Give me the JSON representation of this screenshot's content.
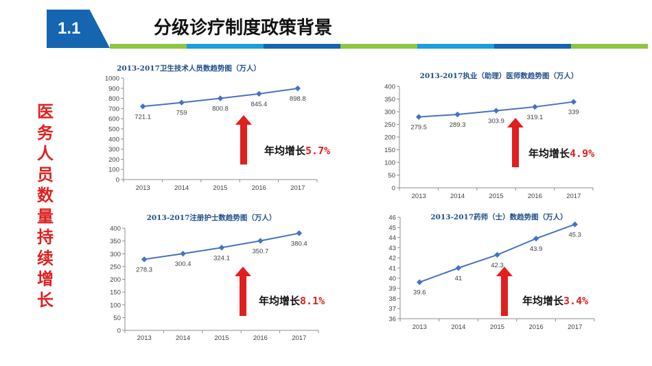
{
  "header": {
    "section_number": "1.1",
    "title": "分级诊疗制度政策背景",
    "stripe_colors": [
      "#8dc63f",
      "#1a9fde",
      "#1565b0",
      "#8dc63f",
      "#1a9fde",
      "#1565b0",
      "#8dc63f"
    ]
  },
  "side_title": [
    "医",
    "务",
    "人",
    "员",
    "数",
    "量",
    "持",
    "续",
    "增",
    "长"
  ],
  "colors": {
    "accent": "#e0201f",
    "brand": "#1565b0",
    "series": "#4472c4"
  },
  "annotations": [
    {
      "prefix": "年均增长",
      "value": "5.7%"
    },
    {
      "prefix": "年均增长",
      "value": "4.9%"
    },
    {
      "prefix": "年均增长",
      "value": "8.1%"
    },
    {
      "prefix": "年均增长",
      "value": "3.4%"
    }
  ],
  "chart_data": [
    {
      "type": "line",
      "title": "2013-2017卫生技术人员数趋势图（万人）",
      "categories": [
        "2013",
        "2014",
        "2015",
        "2016",
        "2017"
      ],
      "values": [
        721.1,
        759,
        800.8,
        845.4,
        898.8
      ],
      "value_labels": [
        "721.1",
        "759",
        "800.8",
        "845.4",
        "898.8"
      ],
      "ylim": [
        0,
        1000
      ],
      "yticks": [
        "0",
        "100",
        "200",
        "300",
        "400",
        "500",
        "600",
        "700",
        "800",
        "900",
        "1000"
      ]
    },
    {
      "type": "line",
      "title": "2013-2017执业（助理）医师数趋势图（万人）",
      "categories": [
        "2013",
        "2014",
        "2015",
        "2016",
        "2017"
      ],
      "values": [
        279.5,
        289.3,
        303.9,
        319.1,
        339
      ],
      "value_labels": [
        "279.5",
        "289.3",
        "303.9",
        "319.1",
        "339"
      ],
      "ylim": [
        0,
        400
      ],
      "yticks": [
        "0",
        "50",
        "100",
        "150",
        "200",
        "250",
        "300",
        "350",
        "400"
      ]
    },
    {
      "type": "line",
      "title": "2013-2017注册护士数趋势图（万人）",
      "categories": [
        "2013",
        "2014",
        "2015",
        "2016",
        "2017"
      ],
      "values": [
        278.3,
        300.4,
        324.1,
        350.7,
        380.4
      ],
      "value_labels": [
        "278.3",
        "300.4",
        "324.1",
        "350.7",
        "380.4"
      ],
      "ylim": [
        0,
        400
      ],
      "yticks": [
        "0",
        "50",
        "100",
        "150",
        "200",
        "250",
        "300",
        "350",
        "400"
      ]
    },
    {
      "type": "line",
      "title": "2013-2017药师（士）数趋势图（万人）",
      "categories": [
        "2013",
        "2014",
        "2015",
        "2016",
        "2017"
      ],
      "values": [
        39.6,
        41,
        42.3,
        43.9,
        45.3
      ],
      "value_labels": [
        "39.6",
        "41",
        "42.3",
        "43.9",
        "45.3"
      ],
      "ylim": [
        36,
        46
      ],
      "yticks": [
        "36",
        "37",
        "38",
        "39",
        "40",
        "41",
        "42",
        "43",
        "44",
        "45",
        "46"
      ]
    }
  ]
}
